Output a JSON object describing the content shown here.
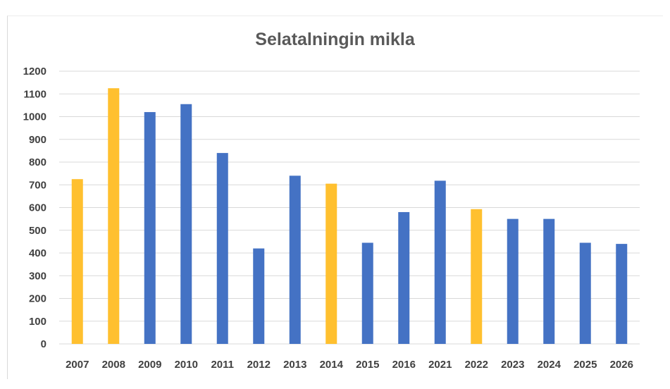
{
  "chart_data": {
    "type": "bar",
    "title": "Selatalningin mikla",
    "xlabel": "",
    "ylabel": "",
    "categories": [
      "2007",
      "2008",
      "2009",
      "2010",
      "2011",
      "2012",
      "2013",
      "2014",
      "2015",
      "2016",
      "2021",
      "2022",
      "2023",
      "2024",
      "2025",
      "2026"
    ],
    "values": [
      725,
      1125,
      1020,
      1055,
      840,
      420,
      740,
      705,
      445,
      580,
      718,
      593,
      550,
      550,
      445,
      440
    ],
    "highlighted": [
      "2007",
      "2008",
      "2014",
      "2022"
    ],
    "ylim": [
      0,
      1200
    ],
    "yticks": [
      0,
      100,
      200,
      300,
      400,
      500,
      600,
      700,
      800,
      900,
      1000,
      1100,
      1200
    ],
    "grid": true,
    "legend": "none",
    "colors": {
      "default": "#4472c4",
      "highlight": "#ffc02f",
      "grid": "#d9d9d9",
      "axis_text": "#404040",
      "title": "#595959"
    }
  }
}
